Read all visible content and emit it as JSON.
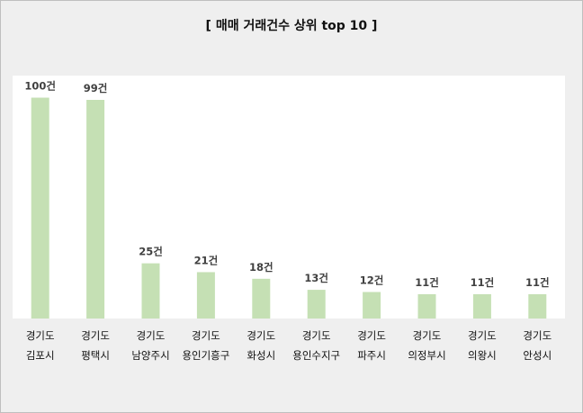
{
  "chart_data": {
    "type": "bar",
    "title": "[ 매매 거래건수 상위 top 10 ]",
    "categories": [
      [
        "경기도",
        "김포시"
      ],
      [
        "경기도",
        "평택시"
      ],
      [
        "경기도",
        "남양주시"
      ],
      [
        "경기도",
        "용인기흥구"
      ],
      [
        "경기도",
        "화성시"
      ],
      [
        "경기도",
        "용인수지구"
      ],
      [
        "경기도",
        "파주시"
      ],
      [
        "경기도",
        "의정부시"
      ],
      [
        "경기도",
        "의왕시"
      ],
      [
        "경기도",
        "안성시"
      ]
    ],
    "values": [
      100,
      99,
      25,
      21,
      18,
      13,
      12,
      11,
      11,
      11
    ],
    "data_labels": [
      "100건",
      "99건",
      "25건",
      "21건",
      "18건",
      "13건",
      "12건",
      "11건",
      "11건",
      "11건"
    ],
    "ylim": [
      0,
      110
    ],
    "xlabel": "",
    "ylabel": "",
    "grid": false,
    "legend": "none",
    "colors": {
      "bar": "#c5e0b4",
      "plot_background": "#ffffff",
      "chart_background": "#efefef"
    }
  }
}
